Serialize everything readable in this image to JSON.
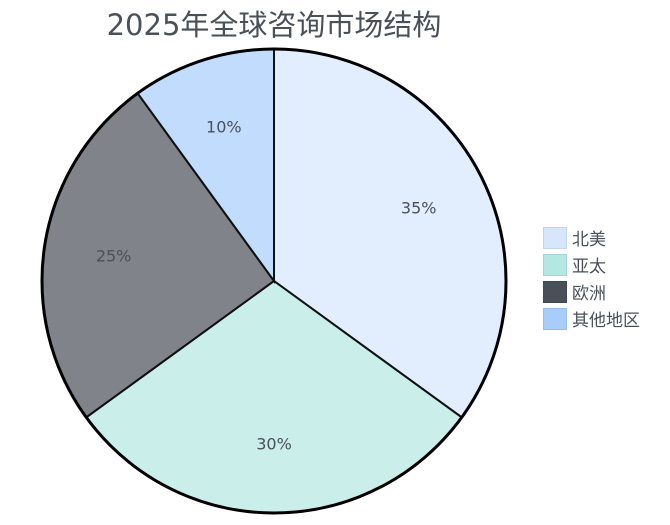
{
  "chart_data": {
    "type": "pie",
    "title": "2025年全球咨询市场结构",
    "categories": [
      "北美",
      "亚太",
      "欧洲",
      "其他地区"
    ],
    "values": [
      35,
      30,
      25,
      10
    ],
    "labels": [
      "35%",
      "30%",
      "25%",
      "10%"
    ],
    "colors": [
      "#d6e6fd",
      "#b3e8e2",
      "#4a5058",
      "#a8cdfd"
    ],
    "start_angle": "top",
    "direction": "clockwise",
    "legend_placement": "right"
  }
}
